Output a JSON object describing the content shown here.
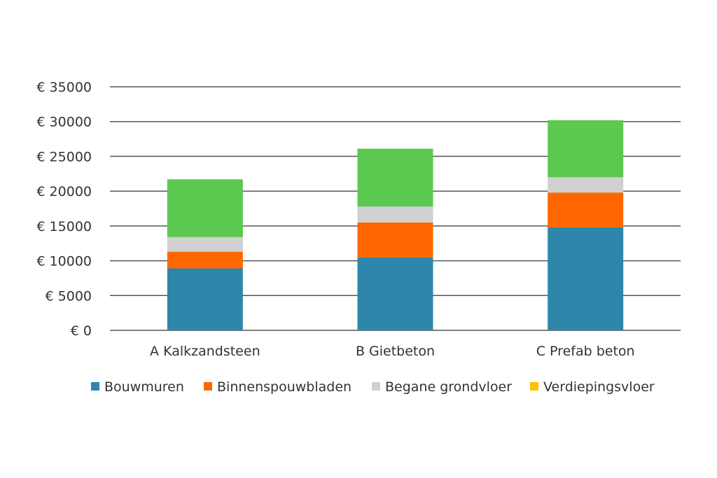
{
  "chart_data": {
    "type": "bar",
    "stacked": true,
    "title": "",
    "xlabel": "",
    "ylabel": "",
    "currency_prefix": "€",
    "ylim": [
      0,
      35000
    ],
    "yticks": [
      0,
      5000,
      10000,
      15000,
      20000,
      25000,
      30000,
      35000
    ],
    "ytick_labels": [
      "€ 0",
      "€ 5000",
      "€ 10000",
      "€ 15000",
      "€ 20000",
      "€ 25000",
      "€ 30000",
      "€ 35000"
    ],
    "grid": true,
    "legend_position": "bottom",
    "categories": [
      "A Kalkzandsteen",
      "B Gietbeton",
      "C Prefab beton"
    ],
    "series": [
      {
        "name": "Bouwmuren",
        "color": "#2e86ab",
        "values": [
          8900,
          10500,
          14800
        ]
      },
      {
        "name": "Binnenspouwbladen",
        "color": "#ff6600",
        "values": [
          2400,
          5000,
          5000
        ]
      },
      {
        "name": "Begane grondvloer",
        "color": "#d0d0d0",
        "values": [
          2100,
          2300,
          2200
        ]
      },
      {
        "name": "Verdiepingsvloer",
        "color": "#ffc000",
        "values": [
          0,
          0,
          0
        ]
      },
      {
        "name": "",
        "color": "#5bc84f",
        "values": [
          8300,
          8300,
          8200
        ]
      }
    ]
  }
}
